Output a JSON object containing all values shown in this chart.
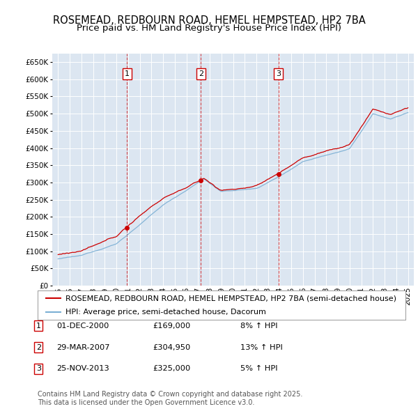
{
  "title": "ROSEMEAD, REDBOURN ROAD, HEMEL HEMPSTEAD, HP2 7BA",
  "subtitle": "Price paid vs. HM Land Registry's House Price Index (HPI)",
  "ylim": [
    0,
    675000
  ],
  "yticks": [
    0,
    50000,
    100000,
    150000,
    200000,
    250000,
    300000,
    350000,
    400000,
    450000,
    500000,
    550000,
    600000,
    650000
  ],
  "xlim_start": 1994.5,
  "xlim_end": 2025.5,
  "xticks": [
    1995,
    1996,
    1997,
    1998,
    1999,
    2000,
    2001,
    2002,
    2003,
    2004,
    2005,
    2006,
    2007,
    2008,
    2009,
    2010,
    2011,
    2012,
    2013,
    2014,
    2015,
    2016,
    2017,
    2018,
    2019,
    2020,
    2021,
    2022,
    2023,
    2024,
    2025
  ],
  "background_color": "#dce6f1",
  "grid_color": "#ffffff",
  "red_line_color": "#cc0000",
  "blue_line_color": "#7bafd4",
  "dashed_line_color": "#cc0000",
  "transactions": [
    {
      "num": 1,
      "date": 2000.92,
      "price": 169000,
      "label": "01-DEC-2000",
      "price_label": "£169,000",
      "hpi_label": "8% ↑ HPI"
    },
    {
      "num": 2,
      "date": 2007.25,
      "price": 304950,
      "label": "29-MAR-2007",
      "price_label": "£304,950",
      "hpi_label": "13% ↑ HPI"
    },
    {
      "num": 3,
      "date": 2013.9,
      "price": 325000,
      "label": "25-NOV-2013",
      "price_label": "£325,000",
      "hpi_label": "5% ↑ HPI"
    }
  ],
  "legend_labels": [
    "ROSEMEAD, REDBOURN ROAD, HEMEL HEMPSTEAD, HP2 7BA (semi-detached house)",
    "HPI: Average price, semi-detached house, Dacorum"
  ],
  "footer": "Contains HM Land Registry data © Crown copyright and database right 2025.\nThis data is licensed under the Open Government Licence v3.0.",
  "title_fontsize": 10.5,
  "subtitle_fontsize": 9.5,
  "tick_fontsize": 7.5,
  "legend_fontsize": 8,
  "footer_fontsize": 7,
  "hpi_base_1995": 78000,
  "hpi_base_2025": 540000,
  "red_base_1995": 82000,
  "red_base_2025": 545000
}
